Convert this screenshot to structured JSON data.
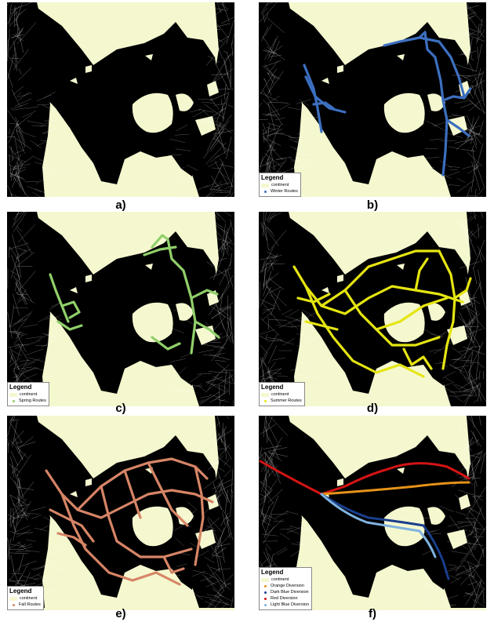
{
  "colors": {
    "land": "#f5f8cf",
    "ice": "#000000",
    "winter": "#3c6fc0",
    "spring": "#90cf6a",
    "summer": "#e5e512",
    "fall": "#d68566",
    "orange_diversion": "#e69318",
    "dark_blue_diversion": "#1a3e8c",
    "red_diversion": "#d41414",
    "light_blue_diversion": "#7fb2e0"
  },
  "panels": [
    {
      "label": "a)",
      "legend": null
    },
    {
      "label": "b)",
      "legend": {
        "title": "Legend",
        "items": [
          {
            "label": "continent",
            "kind": "swatch"
          },
          {
            "label": "Winter Routes",
            "kind": "dot",
            "color": "#3c6fc0"
          }
        ]
      }
    },
    {
      "label": "c)",
      "legend": {
        "title": "Legend",
        "items": [
          {
            "label": "continent",
            "kind": "swatch"
          },
          {
            "label": "Spring Routes",
            "kind": "dot",
            "color": "#90cf6a"
          }
        ]
      }
    },
    {
      "label": "d)",
      "legend": {
        "title": "Legend",
        "items": [
          {
            "label": "continent",
            "kind": "swatch"
          },
          {
            "label": "Summer Routes",
            "kind": "dot",
            "color": "#e5e512"
          }
        ]
      }
    },
    {
      "label": "e)",
      "legend": {
        "title": "Legend",
        "items": [
          {
            "label": "continent",
            "kind": "swatch"
          },
          {
            "label": "Fall Routes",
            "kind": "dot",
            "color": "#d68566"
          }
        ]
      }
    },
    {
      "label": "f)",
      "legend": {
        "title": "Legend",
        "items": [
          {
            "label": "continent",
            "kind": "swatch"
          },
          {
            "label": "Orange Diversion",
            "kind": "dot",
            "color": "#e69318"
          },
          {
            "label": "Dark Blue Diversion",
            "kind": "dot",
            "color": "#1a3e8c"
          },
          {
            "label": "Red Diversion",
            "kind": "dot",
            "color": "#d41414"
          },
          {
            "label": "Light Blue Diversion",
            "kind": "dot",
            "color": "#7fb2e0"
          }
        ]
      }
    }
  ]
}
